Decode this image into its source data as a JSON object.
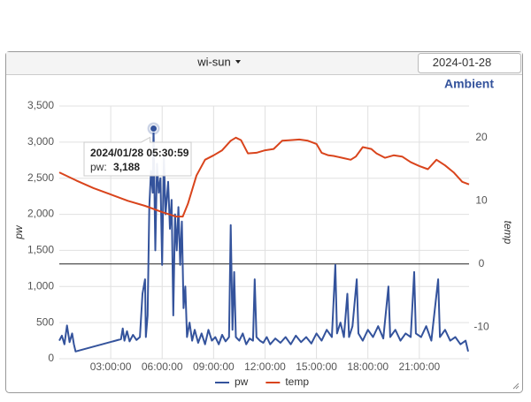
{
  "header": {
    "dropdown": "wi-sun",
    "date": "2024-01-28"
  },
  "chart_data": {
    "type": "line",
    "title": "Ambient",
    "y_label": "pw",
    "y2_label": "temp",
    "xlim": [
      0,
      23.9
    ],
    "xticks": [
      {
        "value": 3,
        "label": "03:00:00"
      },
      {
        "value": 6,
        "label": "06:00:00"
      },
      {
        "value": 9,
        "label": "09:00:00"
      },
      {
        "value": 12,
        "label": "12:00:00"
      },
      {
        "value": 15,
        "label": "15:00:00"
      },
      {
        "value": 18,
        "label": "18:00:00"
      },
      {
        "value": 21,
        "label": "21:00:00"
      }
    ],
    "ylim": [
      0,
      3500
    ],
    "yticks": [
      0,
      {
        "value": 500,
        "label": "500"
      },
      {
        "value": 1000,
        "label": "1,000"
      },
      {
        "value": 1500,
        "label": "1,500"
      },
      {
        "value": 2000,
        "label": "2,000"
      },
      {
        "value": 2500,
        "label": "2,500"
      },
      {
        "value": 3000,
        "label": "3,000"
      },
      {
        "value": 3500,
        "label": "3,500"
      }
    ],
    "y2lim": [
      -15,
      25
    ],
    "y2ticks": [
      -10,
      0,
      10,
      20
    ],
    "y2_plotline": 0,
    "grid": true,
    "series": [
      {
        "name": "pw",
        "color": "#34539c",
        "x": [
          0,
          0.15,
          0.3,
          0.45,
          0.6,
          0.75,
          0.85,
          0.95,
          3.6,
          3.7,
          3.8,
          3.95,
          4.1,
          4.3,
          4.5,
          4.7,
          4.85,
          5.0,
          5.05,
          5.15,
          5.25,
          5.35,
          5.45,
          5.5,
          5.6,
          5.7,
          5.8,
          5.9,
          6.0,
          6.1,
          6.2,
          6.35,
          6.45,
          6.55,
          6.65,
          6.75,
          6.85,
          6.95,
          7.05,
          7.15,
          7.25,
          7.35,
          7.45,
          7.6,
          7.75,
          7.9,
          8.1,
          8.3,
          8.5,
          8.7,
          8.9,
          9.1,
          9.3,
          9.5,
          9.7,
          9.9,
          10.0,
          10.1,
          10.2,
          10.3,
          10.5,
          10.7,
          10.9,
          11.1,
          11.3,
          11.4,
          11.5,
          11.7,
          11.9,
          12.1,
          12.3,
          12.6,
          12.9,
          13.2,
          13.5,
          13.8,
          14.1,
          14.4,
          14.7,
          15.0,
          15.3,
          15.6,
          15.9,
          16.1,
          16.2,
          16.4,
          16.6,
          16.8,
          16.9,
          17.1,
          17.35,
          17.45,
          17.7,
          18.0,
          18.3,
          18.6,
          18.9,
          19.2,
          19.3,
          19.6,
          19.9,
          20.2,
          20.5,
          20.7,
          20.8,
          21.1,
          21.4,
          21.7,
          22.1,
          22.2,
          22.5,
          22.8,
          23.1,
          23.4,
          23.7,
          23.85
        ],
        "values": [
          250,
          320,
          200,
          460,
          230,
          350,
          200,
          100,
          270,
          420,
          250,
          380,
          240,
          330,
          260,
          300,
          900,
          1100,
          300,
          600,
          2100,
          2600,
          2300,
          3188,
          1500,
          2700,
          2300,
          2500,
          1300,
          2800,
          2000,
          2450,
          1800,
          2200,
          600,
          2000,
          1500,
          2100,
          1300,
          1900,
          700,
          1000,
          300,
          500,
          250,
          400,
          220,
          350,
          200,
          400,
          250,
          300,
          200,
          330,
          240,
          300,
          1850,
          400,
          1200,
          300,
          250,
          350,
          200,
          280,
          250,
          1100,
          300,
          250,
          220,
          300,
          200,
          280,
          220,
          300,
          200,
          320,
          230,
          300,
          210,
          350,
          250,
          400,
          300,
          1300,
          350,
          500,
          300,
          900,
          300,
          450,
          1100,
          350,
          250,
          400,
          300,
          450,
          280,
          1000,
          300,
          400,
          250,
          350,
          300,
          1200,
          350,
          300,
          450,
          250,
          1100,
          300,
          400,
          250,
          300,
          200,
          250,
          100
        ]
      },
      {
        "name": "temp",
        "color": "#d9441c",
        "axis": "y2",
        "x": [
          0,
          1,
          2,
          3,
          4,
          5,
          6,
          6.8,
          7.2,
          7.5,
          8,
          8.5,
          9,
          9.5,
          10,
          10.3,
          10.6,
          11,
          11.5,
          12,
          12.5,
          13,
          13.5,
          14,
          14.5,
          15,
          15.3,
          15.7,
          16,
          16.5,
          17,
          17.3,
          17.7,
          18.2,
          18.5,
          19,
          19.5,
          20,
          20.5,
          21,
          21.5,
          22,
          22.5,
          23,
          23.5,
          23.9
        ],
        "values": [
          14.5,
          13.2,
          12,
          11,
          10,
          9.2,
          8.2,
          7.5,
          7.5,
          9.5,
          14,
          16.5,
          17.2,
          18,
          19.5,
          20,
          19.6,
          17.5,
          17.6,
          18,
          18.2,
          19.5,
          19.6,
          19.7,
          19.5,
          19,
          17.6,
          17.2,
          17.1,
          16.8,
          16.5,
          17,
          18.5,
          18.2,
          17.5,
          16.8,
          17.2,
          17,
          16.1,
          15.5,
          15,
          16.5,
          15.6,
          14.5,
          13,
          12.6
        ]
      }
    ],
    "tooltip": {
      "title": "2024/01/28 05:30:59",
      "label": "pw: ",
      "value": 3188,
      "value_label": "3,188"
    }
  }
}
